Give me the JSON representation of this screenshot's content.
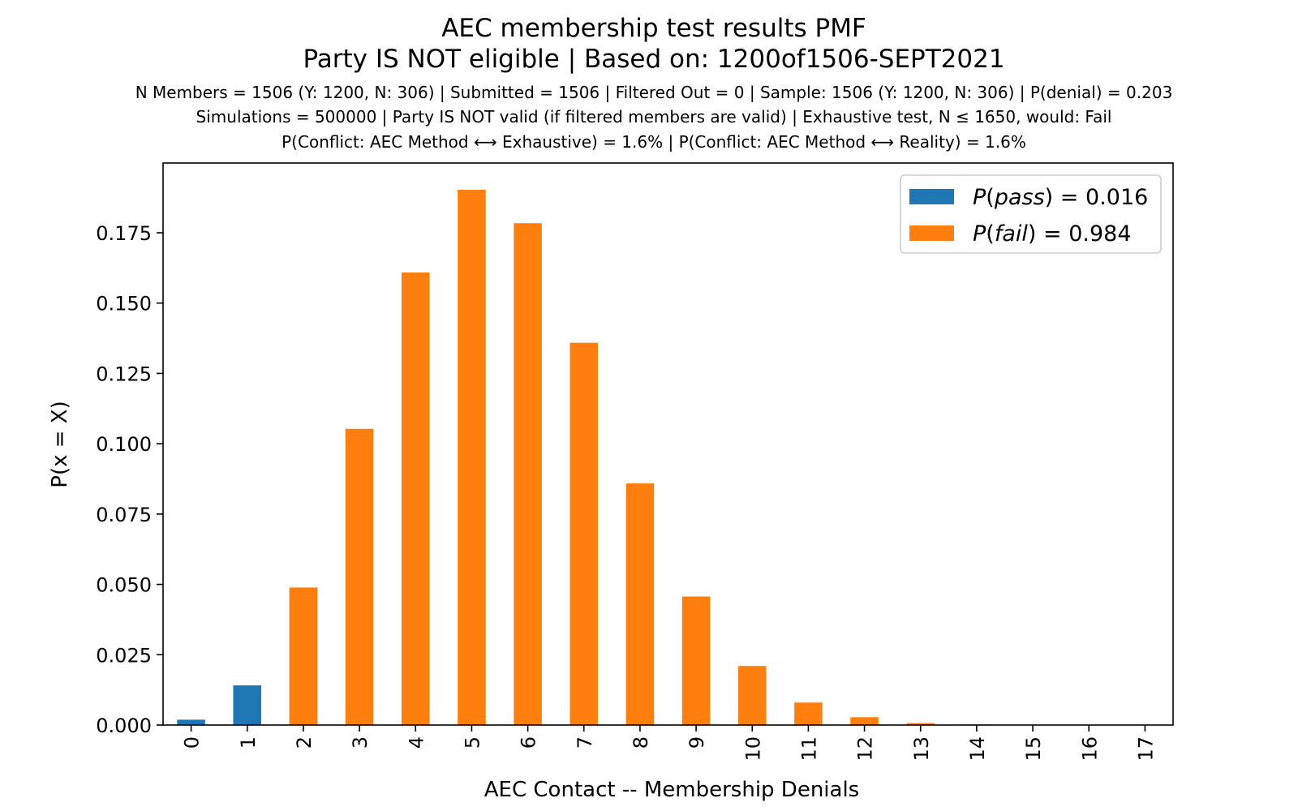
{
  "chart_data": {
    "type": "bar",
    "title": "AEC membership test results PMF",
    "title_line2": "Party IS NOT eligible | Based on: 1200of1506-SEPT2021",
    "subtitle_lines": [
      "N Members = 1506 (Y: 1200, N: 306) | Submitted = 1506 | Filtered Out = 0 | Sample: 1506 (Y: 1200, N: 306) | P(denial) = 0.203",
      "Simulations = 500000 | Party IS NOT valid (if filtered members are valid) | Exhaustive test, N ≤ 1650, would: Fail",
      "P(Conflict: AEC Method ⟷ Exhaustive) = 1.6% | P(Conflict: AEC Method ⟷ Reality) = 1.6%"
    ],
    "xlabel": "AEC Contact -- Membership Denials",
    "ylabel": "P(x = X)",
    "categories": [
      "0",
      "1",
      "2",
      "3",
      "4",
      "5",
      "6",
      "7",
      "8",
      "9",
      "10",
      "11",
      "12",
      "13",
      "14",
      "15",
      "16",
      "17"
    ],
    "values": [
      0.0019,
      0.0141,
      0.0489,
      0.1053,
      0.1609,
      0.1903,
      0.1784,
      0.1359,
      0.0859,
      0.0457,
      0.021,
      0.008,
      0.0028,
      0.0007,
      0.0002,
      0.0,
      0.0,
      0.0
    ],
    "bar_group": [
      "pass",
      "pass",
      "fail",
      "fail",
      "fail",
      "fail",
      "fail",
      "fail",
      "fail",
      "fail",
      "fail",
      "fail",
      "fail",
      "fail",
      "fail",
      "fail",
      "fail",
      "fail"
    ],
    "yticks": [
      "0.000",
      "0.025",
      "0.050",
      "0.075",
      "0.100",
      "0.125",
      "0.150",
      "0.175"
    ],
    "ylim": [
      0,
      0.1998
    ],
    "grid": false,
    "legend_placement": "top-right",
    "legend": [
      {
        "key": "pass",
        "italic": "P",
        "paren": "pass",
        "value_text": " = 0.016",
        "color": "#1f77b4"
      },
      {
        "key": "fail",
        "italic": "P",
        "paren": "fail",
        "value_text": " = 0.984",
        "color": "#ff7f0e"
      }
    ],
    "colors": {
      "pass": "#1f77b4",
      "fail": "#ff7f0e"
    }
  }
}
